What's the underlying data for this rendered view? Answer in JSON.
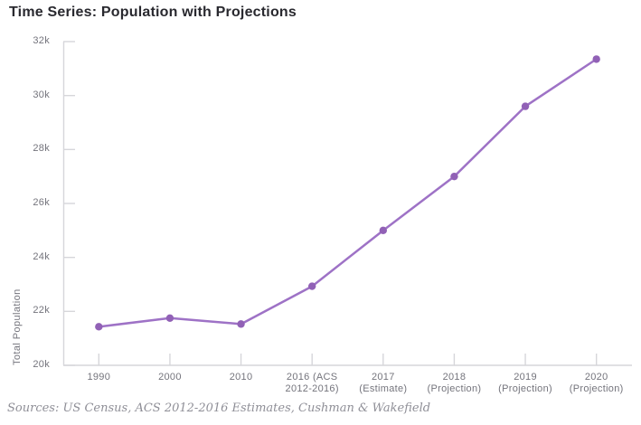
{
  "source_note": "Sources: US Census, ACS 2012-2016 Estimates, Cushman & Wakefield",
  "colors": {
    "line": "#9e72c6",
    "marker": "#9161b6",
    "axis": "#d6d6da",
    "title_text": "#29292f",
    "tick_text": "#74747c",
    "source_text": "#8f8f97"
  },
  "chart_data": {
    "type": "line",
    "title": "Time Series: Population with Projections",
    "xlabel": "",
    "ylabel": "Total Population",
    "ylim": [
      20000,
      32000
    ],
    "y_tick_labels": [
      "20k",
      "22k",
      "24k",
      "26k",
      "28k",
      "30k",
      "32k"
    ],
    "grid": false,
    "legend": "none",
    "categories": [
      "1990",
      "2000",
      "2010",
      "2016 (ACS 2012-2016)",
      "2017 (Estimate)",
      "2018 (Projection)",
      "2019 (Projection)",
      "2020 (Projection)"
    ],
    "category_label_lines": [
      [
        "1990"
      ],
      [
        "2000"
      ],
      [
        "2010"
      ],
      [
        "2016 (ACS",
        "2012-2016)"
      ],
      [
        "2017",
        "(Estimate)"
      ],
      [
        "2018",
        "(Projection)"
      ],
      [
        "2019",
        "(Projection)"
      ],
      [
        "2020",
        "(Projection)"
      ]
    ],
    "series": [
      {
        "name": "Total Population",
        "values": [
          21430,
          21750,
          21530,
          22930,
          25000,
          27000,
          29600,
          31350
        ]
      }
    ]
  }
}
